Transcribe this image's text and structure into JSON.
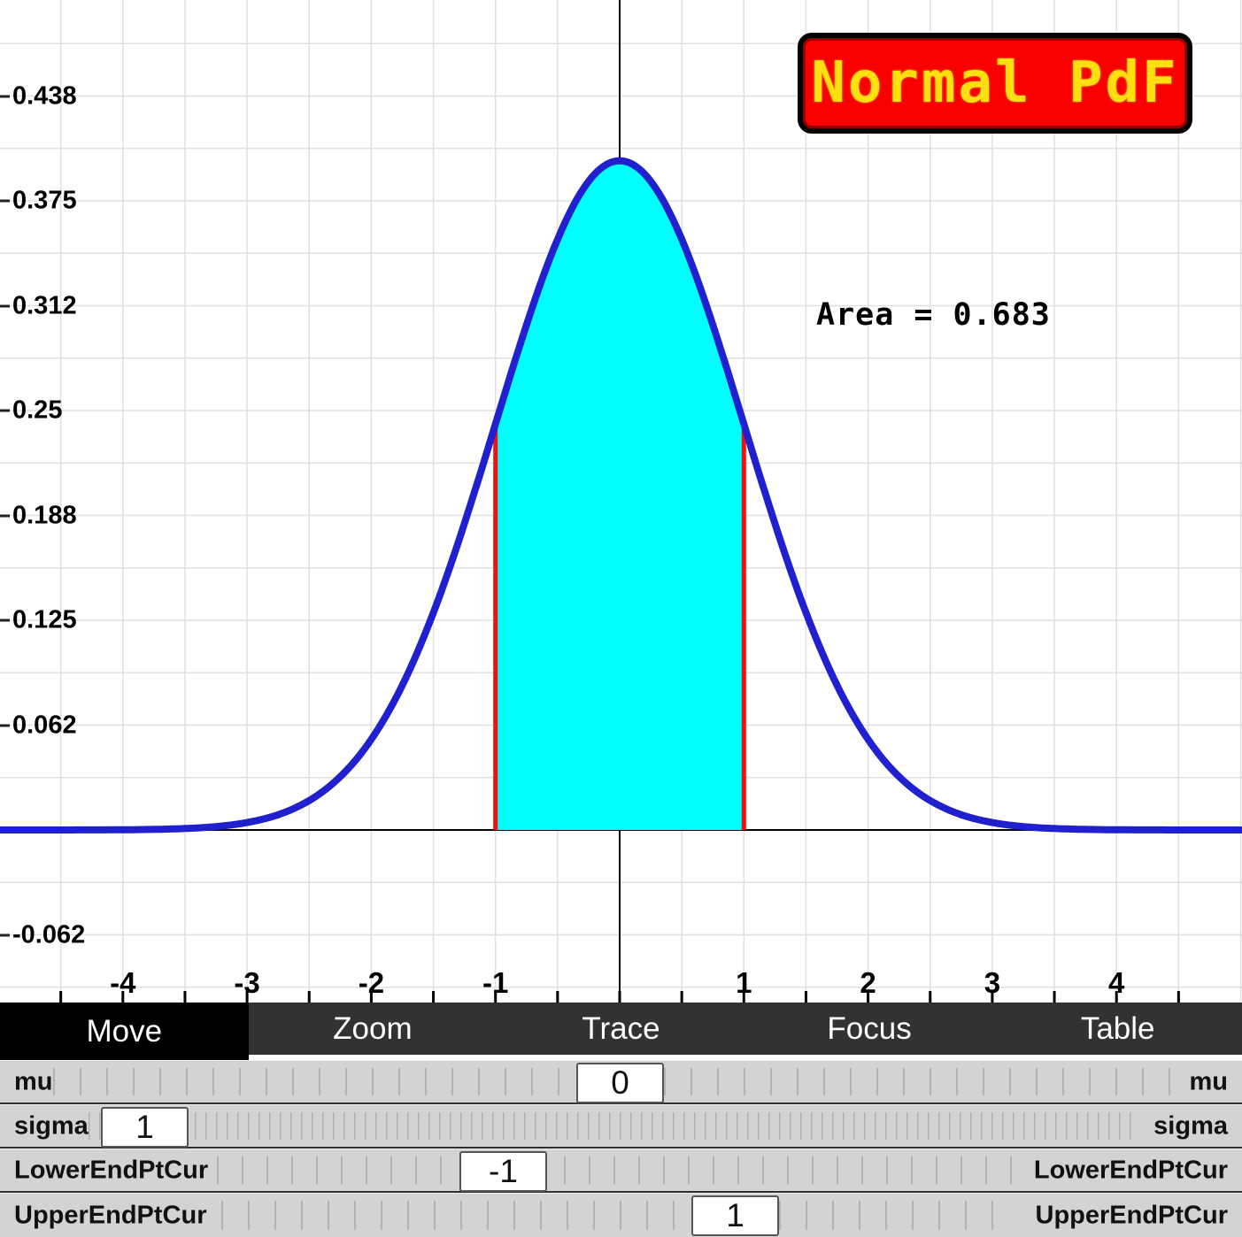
{
  "title_badge": {
    "text": "Normal PdF",
    "bg_color": "#f80000",
    "text_color": "#ffdf12"
  },
  "area_label": "Area = 0.683",
  "chart_data": {
    "type": "area",
    "curve": "normal_pdf",
    "title": "Normal PdF",
    "mu": 0,
    "sigma": 1,
    "shade_lower": -1,
    "shade_upper": 1,
    "shaded_area": 0.683,
    "peak_value": 0.399,
    "x_range": [
      -5,
      5
    ],
    "y_range": [
      -0.103,
      0.495
    ],
    "x_tick_values": [
      -4,
      -3,
      -2,
      -1,
      1,
      2,
      3,
      4
    ],
    "x_tick_labels": [
      "-4",
      "-3",
      "-2",
      "-1",
      "1",
      "2",
      "3",
      "4"
    ],
    "y_tick_values": [
      0.4375,
      0.375,
      0.3125,
      0.25,
      0.1875,
      0.125,
      0.0625,
      -0.0625
    ],
    "y_tick_labels": [
      "0.438",
      "0.375",
      "0.312",
      "0.25",
      "0.188",
      "0.125",
      "0.062",
      "-0.062"
    ],
    "grid": true,
    "grid_color": "#e0e0e0",
    "axis_color": "#000000",
    "curve_color": "#2020cf",
    "fill_color": "#00ffff",
    "endpoint_line_color": "#ee1111"
  },
  "menu": {
    "tabs": [
      {
        "label": "Move",
        "selected": true
      },
      {
        "label": "Zoom",
        "selected": false
      },
      {
        "label": "Trace",
        "selected": false
      },
      {
        "label": "Focus",
        "selected": false
      },
      {
        "label": "Table",
        "selected": false
      }
    ]
  },
  "sliders": [
    {
      "name": "mu",
      "label": "mu",
      "value": "0"
    },
    {
      "name": "sigma",
      "label": "sigma",
      "value": "1"
    },
    {
      "name": "lower",
      "label": "LowerEndPtCur",
      "value": "-1"
    },
    {
      "name": "upper",
      "label": "UpperEndPtCur",
      "value": "1"
    }
  ]
}
